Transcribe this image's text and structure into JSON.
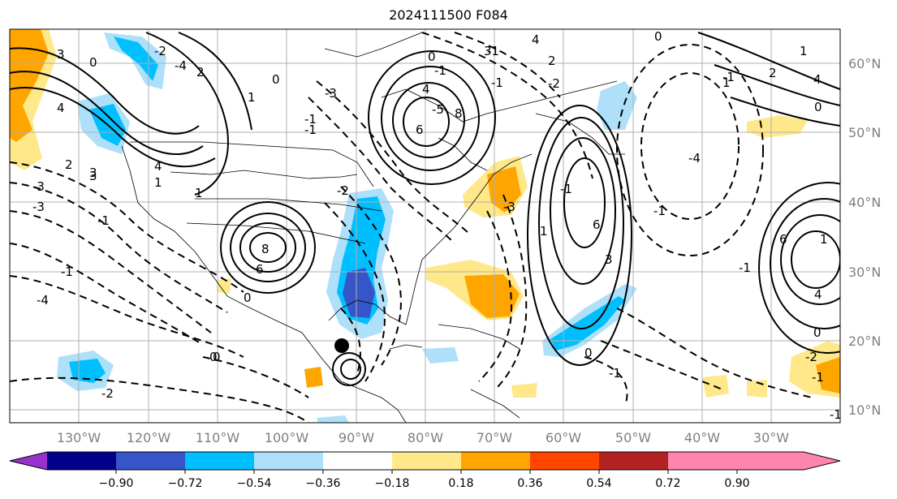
{
  "title": "2024111500 F084",
  "map": {
    "lat_labels": [
      "60°N",
      "50°N",
      "40°N",
      "30°N",
      "20°N",
      "10°N"
    ],
    "lon_labels": [
      "130°W",
      "120°W",
      "110°W",
      "100°W",
      "90°W",
      "80°W",
      "70°W",
      "60°W",
      "50°W",
      "40°W",
      "30°W"
    ],
    "contour_labels": [
      "0",
      "-4",
      "-2",
      "4",
      "-1",
      "1",
      "3",
      "2",
      "-3",
      "8",
      "6",
      "0",
      "-1",
      "-3",
      "1",
      "2",
      "-2",
      "-4",
      "3",
      "1",
      "0",
      "-1",
      "4",
      "3",
      "-1",
      "-3",
      "-2",
      "0",
      "4",
      "-1",
      "-5",
      "0",
      "6",
      "8",
      "-1",
      "2",
      "3",
      "-1",
      "-3",
      "4",
      "0",
      "-2",
      "1",
      "3",
      "6",
      "-1",
      "-1",
      "0",
      "1",
      "-4",
      "4",
      "0",
      "2",
      "-1",
      "1",
      "6",
      "0",
      "-1",
      "4",
      "-2",
      "-1",
      "-1",
      "0",
      "-1",
      "1"
    ],
    "marker": "black-dot",
    "contour_color": "#000000"
  },
  "colorbar": {
    "ticks": [
      "−0.90",
      "−0.72",
      "−0.54",
      "−0.36",
      "−0.18",
      "0.18",
      "0.36",
      "0.54",
      "0.72",
      "0.90"
    ],
    "colors": [
      "#9932CC",
      "#00008B",
      "#3655C8",
      "#00BFFF",
      "#AEE0FA",
      "#FFFFFF",
      "#FFE88A",
      "#FFA500",
      "#FF4500",
      "#B22222",
      "#FF85B0"
    ]
  }
}
